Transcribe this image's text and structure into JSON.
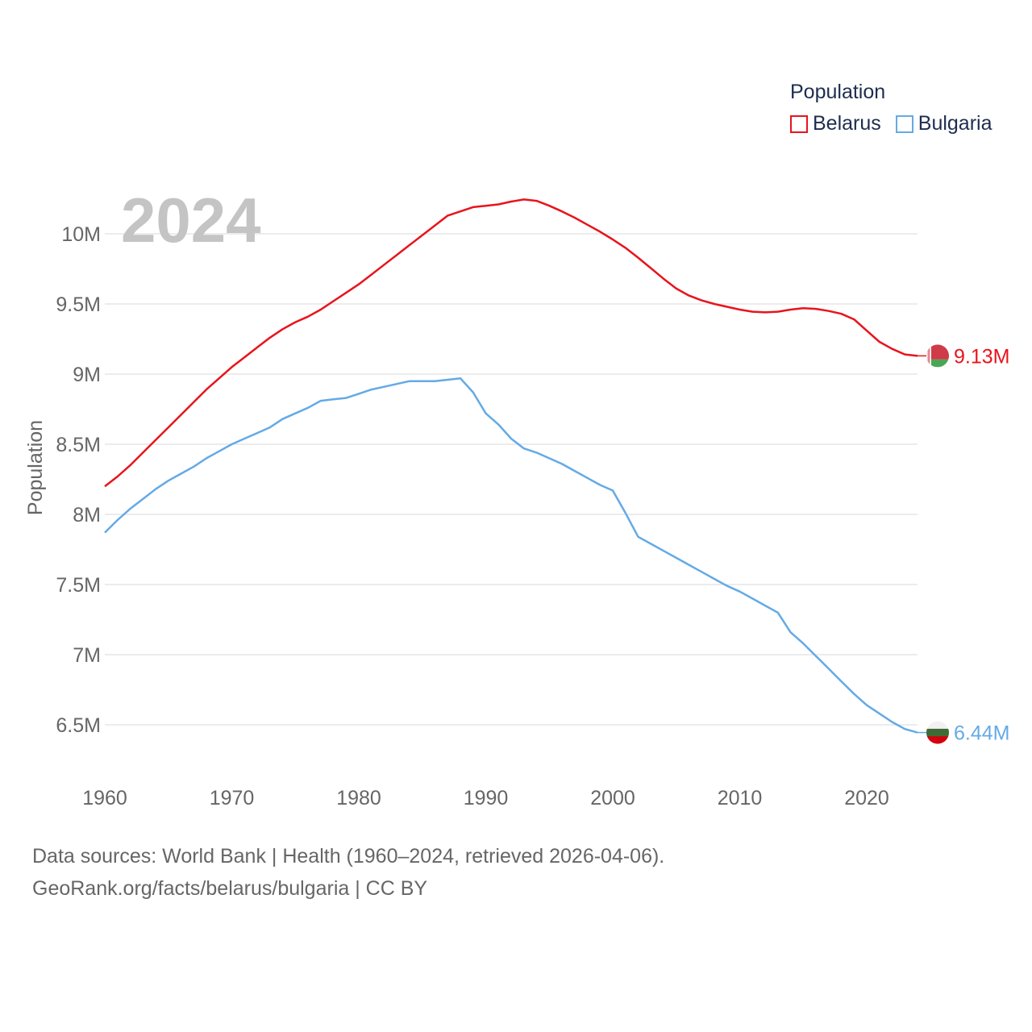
{
  "chart_data": {
    "type": "line",
    "year_label": "2024",
    "ylabel": "Population",
    "xlim": [
      1960,
      2024
    ],
    "ylim": [
      6150000,
      10400000
    ],
    "yticks": [
      6500000,
      7000000,
      7500000,
      8000000,
      8500000,
      9000000,
      9500000,
      10000000
    ],
    "ytick_labels": [
      "6.5M",
      "7M",
      "7.5M",
      "8M",
      "8.5M",
      "9M",
      "9.5M",
      "10M"
    ],
    "xticks": [
      1960,
      1970,
      1980,
      1990,
      2000,
      2010,
      2020
    ],
    "xtick_labels": [
      "1960",
      "1970",
      "1980",
      "1990",
      "2000",
      "2010",
      "2020"
    ],
    "legend_title": "Population",
    "x": [
      1960,
      1961,
      1962,
      1963,
      1964,
      1965,
      1966,
      1967,
      1968,
      1969,
      1970,
      1971,
      1972,
      1973,
      1974,
      1975,
      1976,
      1977,
      1978,
      1979,
      1980,
      1981,
      1982,
      1983,
      1984,
      1985,
      1986,
      1987,
      1988,
      1989,
      1990,
      1991,
      1992,
      1993,
      1994,
      1995,
      1996,
      1997,
      1998,
      1999,
      2000,
      2001,
      2002,
      2003,
      2004,
      2005,
      2006,
      2007,
      2008,
      2009,
      2010,
      2011,
      2012,
      2013,
      2014,
      2015,
      2016,
      2017,
      2018,
      2019,
      2020,
      2021,
      2022,
      2023,
      2024
    ],
    "series": [
      {
        "name": "Belarus",
        "color": "#e8141c",
        "end_label": "9.13M",
        "flag": "belarus-flag",
        "values": [
          8200000,
          8270000,
          8350000,
          8440000,
          8530000,
          8620000,
          8710000,
          8800000,
          8890000,
          8970000,
          9050000,
          9120000,
          9190000,
          9260000,
          9320000,
          9370000,
          9410000,
          9460000,
          9520000,
          9580000,
          9640000,
          9710000,
          9780000,
          9850000,
          9920000,
          9990000,
          10060000,
          10130000,
          10160000,
          10190000,
          10200000,
          10210000,
          10230000,
          10245000,
          10235000,
          10200000,
          10160000,
          10115000,
          10065000,
          10015000,
          9960000,
          9900000,
          9830000,
          9755000,
          9680000,
          9610000,
          9560000,
          9525000,
          9500000,
          9480000,
          9460000,
          9445000,
          9440000,
          9445000,
          9460000,
          9470000,
          9465000,
          9450000,
          9430000,
          9390000,
          9310000,
          9230000,
          9180000,
          9140000,
          9130000
        ]
      },
      {
        "name": "Bulgaria",
        "color": "#64aae6",
        "end_label": "6.44M",
        "flag": "bulgaria-flag",
        "values": [
          7870000,
          7960000,
          8040000,
          8110000,
          8180000,
          8240000,
          8290000,
          8340000,
          8400000,
          8450000,
          8500000,
          8540000,
          8580000,
          8620000,
          8680000,
          8720000,
          8760000,
          8810000,
          8820000,
          8830000,
          8860000,
          8890000,
          8910000,
          8930000,
          8950000,
          8950000,
          8950000,
          8960000,
          8970000,
          8870000,
          8720000,
          8640000,
          8540000,
          8470000,
          8440000,
          8400000,
          8360000,
          8310000,
          8260000,
          8210000,
          8170000,
          8010000,
          7840000,
          7790000,
          7740000,
          7690000,
          7640000,
          7590000,
          7540000,
          7490000,
          7450000,
          7400000,
          7350000,
          7300000,
          7160000,
          7080000,
          6990000,
          6900000,
          6810000,
          6720000,
          6640000,
          6580000,
          6520000,
          6470000,
          6445000
        ]
      }
    ]
  },
  "footer": {
    "line1": "Data sources: World Bank | Health (1960–2024, retrieved 2026-04-06).",
    "line2": "GeoRank.org/facts/belarus/bulgaria | CC BY"
  }
}
